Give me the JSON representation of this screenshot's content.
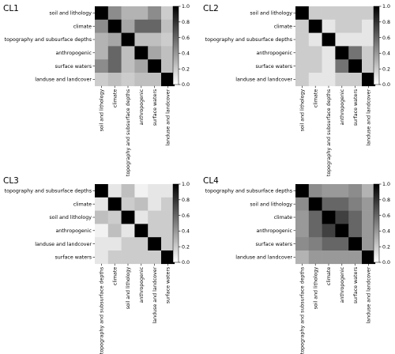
{
  "colorbar": {
    "ticks": [
      "0.0",
      "0.2",
      "0.4",
      "0.6",
      "0.8",
      "1.0"
    ],
    "min": 0,
    "max": 1
  },
  "chart_data": [
    {
      "type": "heatmap",
      "title": "CL1",
      "labels": [
        "soil and lithology",
        "climate",
        "topography and subsurface depths",
        "anthropogenic",
        "surface waters",
        "landuse and landcover"
      ],
      "values": [
        [
          1.0,
          0.45,
          0.3,
          0.3,
          0.45,
          0.2
        ],
        [
          0.45,
          1.0,
          0.35,
          0.6,
          0.6,
          0.25
        ],
        [
          0.3,
          0.35,
          1.0,
          0.25,
          0.25,
          0.2
        ],
        [
          0.3,
          0.6,
          0.25,
          1.0,
          0.35,
          0.25
        ],
        [
          0.45,
          0.6,
          0.25,
          0.35,
          1.0,
          0.25
        ],
        [
          0.2,
          0.25,
          0.2,
          0.25,
          0.25,
          1.0
        ]
      ]
    },
    {
      "type": "heatmap",
      "title": "CL2",
      "labels": [
        "soil and lithology",
        "climate",
        "topography and subsurface depths",
        "anthropogenic",
        "surface waters",
        "landuse and landcover"
      ],
      "values": [
        [
          1.0,
          0.2,
          0.2,
          0.2,
          0.2,
          0.2
        ],
        [
          0.2,
          1.0,
          0.1,
          0.2,
          0.2,
          0.1
        ],
        [
          0.2,
          0.1,
          1.0,
          0.1,
          0.1,
          0.1
        ],
        [
          0.2,
          0.2,
          0.1,
          1.0,
          0.55,
          0.2
        ],
        [
          0.2,
          0.2,
          0.1,
          0.55,
          1.0,
          0.2
        ],
        [
          0.2,
          0.1,
          0.1,
          0.2,
          0.2,
          1.0
        ]
      ]
    },
    {
      "type": "heatmap",
      "title": "CL3",
      "labels": [
        "topography and subsurface depths",
        "climate",
        "soil and lithology",
        "anthropogenic",
        "landuse and landcover",
        "surface waters"
      ],
      "values": [
        [
          1.0,
          0.1,
          0.25,
          0.05,
          0.1,
          0.1
        ],
        [
          0.1,
          1.0,
          0.2,
          0.25,
          0.1,
          0.2
        ],
        [
          0.25,
          0.2,
          1.0,
          0.1,
          0.2,
          0.2
        ],
        [
          0.05,
          0.25,
          0.1,
          1.0,
          0.2,
          0.2
        ],
        [
          0.1,
          0.1,
          0.2,
          0.2,
          1.0,
          0.2
        ],
        [
          0.1,
          0.2,
          0.2,
          0.2,
          0.2,
          1.0
        ]
      ]
    },
    {
      "type": "heatmap",
      "title": "CL4",
      "labels": [
        "topography and subsurface depths",
        "soil and lithology",
        "climate",
        "anthropogenic",
        "surface waters",
        "landuse and landcover"
      ],
      "values": [
        [
          1.0,
          0.45,
          0.4,
          0.4,
          0.45,
          0.3
        ],
        [
          0.45,
          1.0,
          0.6,
          0.6,
          0.5,
          0.4
        ],
        [
          0.4,
          0.6,
          1.0,
          0.75,
          0.6,
          0.4
        ],
        [
          0.4,
          0.6,
          0.75,
          1.0,
          0.6,
          0.4
        ],
        [
          0.45,
          0.5,
          0.6,
          0.6,
          1.0,
          0.4
        ],
        [
          0.3,
          0.4,
          0.4,
          0.4,
          0.4,
          1.0
        ]
      ]
    }
  ]
}
